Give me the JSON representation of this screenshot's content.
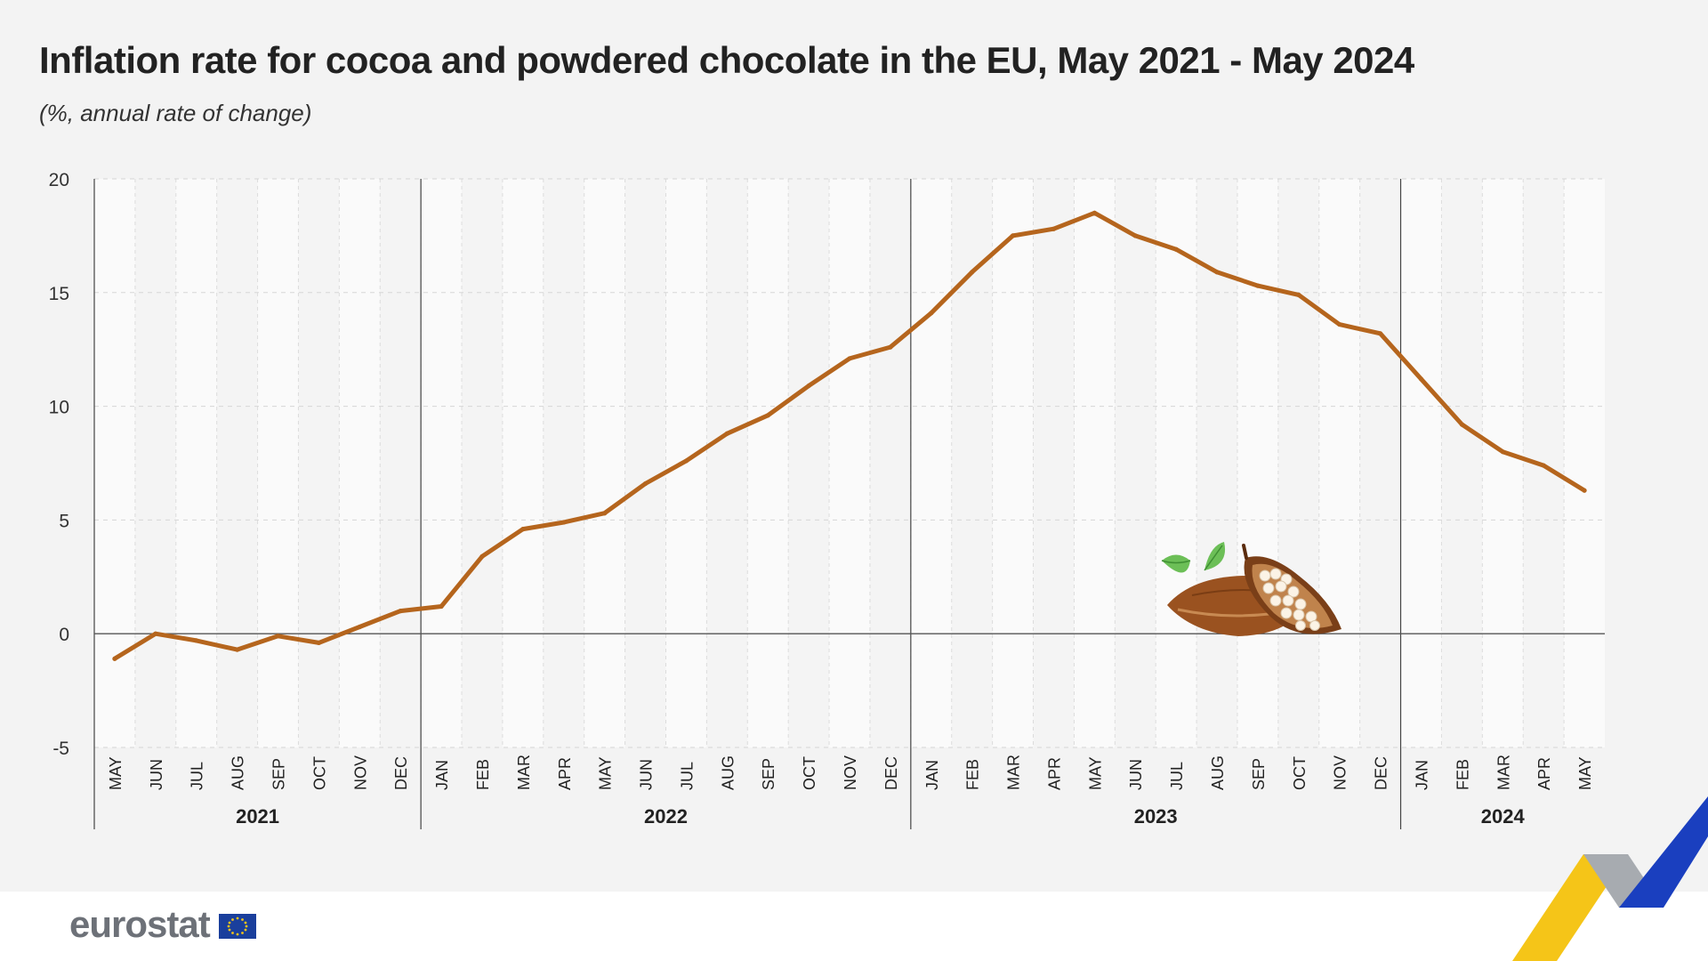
{
  "title": "Inflation rate for cocoa and powdered chocolate in the EU, May 2021 - May 2024",
  "subtitle": "(%, annual rate of change)",
  "footer": {
    "logo_text": "eurostat"
  },
  "colors": {
    "line": "#b5651d",
    "brand_yellow": "#f5c518",
    "brand_blue": "#1a3fbf",
    "brand_grey": "#9aa0a6"
  },
  "icons": [
    "cocoa-pod-icon",
    "eu-flag-icon",
    "brand-chevron-icon"
  ],
  "chart_data": {
    "type": "line",
    "title": "Inflation rate for cocoa and powdered chocolate in the EU, May 2021 - May 2024",
    "subtitle": "(%, annual rate of change)",
    "ylim": [
      -5,
      20
    ],
    "yticks": [
      -5,
      0,
      5,
      10,
      15,
      20
    ],
    "grid": true,
    "month_labels": [
      "MAY",
      "JUN",
      "JUL",
      "AUG",
      "SEP",
      "OCT",
      "NOV",
      "DEC",
      "JAN",
      "FEB",
      "MAR",
      "APR",
      "MAY",
      "JUN",
      "JUL",
      "AUG",
      "SEP",
      "OCT",
      "NOV",
      "DEC",
      "JAN",
      "FEB",
      "MAR",
      "APR",
      "MAY",
      "JUN",
      "JUL",
      "AUG",
      "SEP",
      "OCT",
      "NOV",
      "DEC",
      "JAN",
      "FEB",
      "MAR",
      "APR",
      "MAY"
    ],
    "years": [
      {
        "label": "2021",
        "months": 8
      },
      {
        "label": "2022",
        "months": 12
      },
      {
        "label": "2023",
        "months": 12
      },
      {
        "label": "2024",
        "months": 5
      }
    ],
    "series": [
      {
        "values": [
          -1.1,
          0.0,
          -0.3,
          -0.7,
          -0.1,
          -0.4,
          0.3,
          1.0,
          1.2,
          3.4,
          4.6,
          4.9,
          5.3,
          6.6,
          7.6,
          8.8,
          9.6,
          10.9,
          12.1,
          12.6,
          14.1,
          15.9,
          17.5,
          17.8,
          18.5,
          17.5,
          16.9,
          15.9,
          15.3,
          14.9,
          13.6,
          13.2,
          11.2,
          9.2,
          8.0,
          7.4,
          6.3
        ]
      }
    ]
  }
}
